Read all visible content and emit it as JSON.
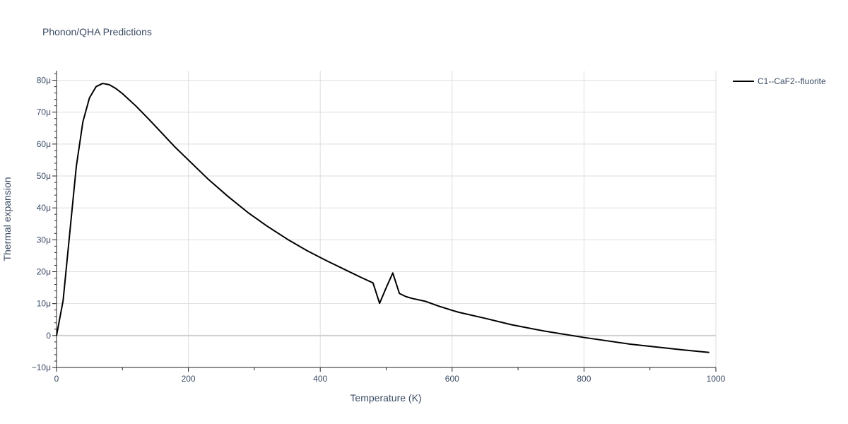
{
  "chart_data": {
    "type": "line",
    "title": "Phonon/QHA Predictions",
    "xlabel": "Temperature (K)",
    "ylabel": "Thermal expansion",
    "xlim": [
      0,
      1000
    ],
    "ylim": [
      -10,
      83
    ],
    "y_unit_suffix": "μ",
    "grid": true,
    "legend_position": "right",
    "x_ticks": [
      0,
      200,
      400,
      600,
      800,
      1000
    ],
    "x_tick_labels": [
      "0",
      "200",
      "400",
      "600",
      "800",
      "1000"
    ],
    "y_ticks": [
      -10,
      0,
      10,
      20,
      30,
      40,
      50,
      60,
      70,
      80
    ],
    "y_tick_labels": [
      "−10μ",
      "0",
      "10μ",
      "20μ",
      "30μ",
      "40μ",
      "50μ",
      "60μ",
      "70μ",
      "80μ"
    ],
    "series": [
      {
        "name": "C1--CaF2--fluorite",
        "color": "#000000",
        "x": [
          0,
          10,
          20,
          30,
          40,
          50,
          60,
          70,
          80,
          90,
          100,
          120,
          140,
          160,
          180,
          200,
          230,
          260,
          290,
          320,
          350,
          380,
          410,
          440,
          460,
          480,
          490,
          500,
          510,
          520,
          530,
          540,
          560,
          580,
          600,
          610,
          650,
          690,
          740,
          800,
          870,
          950,
          990
        ],
        "values": [
          0,
          11,
          32,
          53,
          67,
          74.5,
          78,
          79,
          78.6,
          77.4,
          75.8,
          72,
          67.8,
          63.4,
          59,
          55,
          49,
          43.6,
          38.6,
          34.2,
          30.2,
          26.6,
          23.4,
          20.4,
          18.4,
          16.5,
          10.1,
          15,
          19.6,
          13.2,
          12.2,
          11.6,
          10.7,
          9.2,
          7.9,
          7.3,
          5.4,
          3.4,
          1.4,
          -0.6,
          -2.7,
          -4.5,
          -5.3
        ]
      }
    ]
  }
}
